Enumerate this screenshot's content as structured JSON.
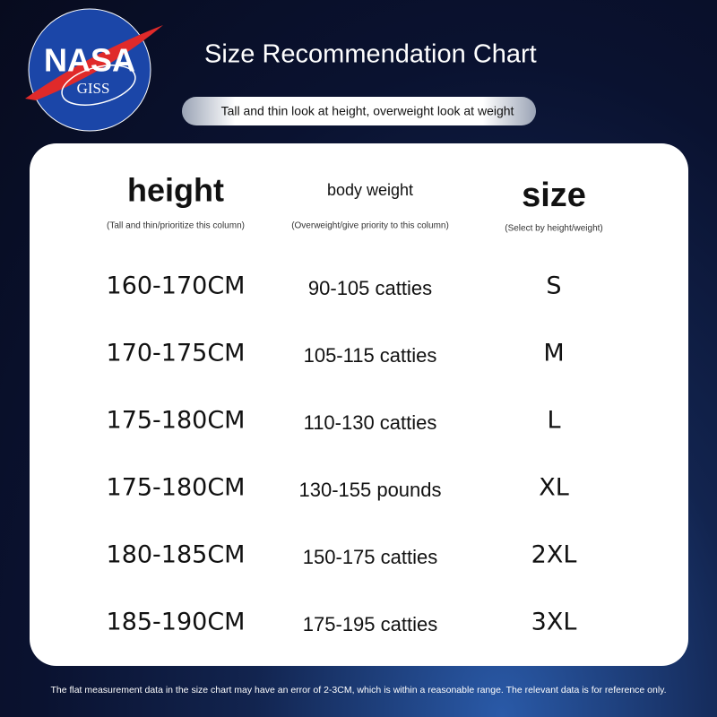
{
  "logo": {
    "top": "NASA",
    "bottom": "GISS"
  },
  "header": {
    "title": "Size Recommendation Chart",
    "subtitle": "Tall and thin look at height, overweight look at weight"
  },
  "table": {
    "columns": [
      {
        "title": "height",
        "note": "(Tall and thin/prioritize this column)"
      },
      {
        "title": "body weight",
        "note": "(Overweight/give priority to this column)"
      },
      {
        "title": "size",
        "note": "(Select by height/weight)"
      }
    ],
    "rows": [
      [
        "160-170CM",
        "90-105 catties",
        "S"
      ],
      [
        "170-175CM",
        "105-115 catties",
        "M"
      ],
      [
        "175-180CM",
        "110-130 catties",
        "L"
      ],
      [
        "175-180CM",
        "130-155 pounds",
        "XL"
      ],
      [
        "180-185CM",
        "150-175 catties",
        "2XL"
      ],
      [
        "185-190CM",
        "175-195 catties",
        "3XL"
      ]
    ]
  },
  "footer": {
    "note": "The flat measurement data in the size chart may have an error of 2-3CM, which is within a reasonable range. The relevant data is for reference only."
  }
}
